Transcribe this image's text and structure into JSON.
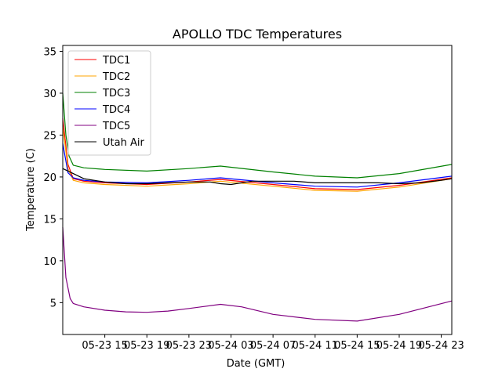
{
  "chart_data": {
    "type": "line",
    "title": "APOLLO TDC Temperatures",
    "xlabel": "Date (GMT)",
    "ylabel": "Temperature (C)",
    "x_unit": "hours since 05-23 11:00 GMT",
    "xlim": [
      0,
      37
    ],
    "ylim": [
      1.2,
      35.7
    ],
    "xticks": [
      {
        "value": 4,
        "label": "05-23 15"
      },
      {
        "value": 8,
        "label": "05-23 19"
      },
      {
        "value": 12,
        "label": "05-23 23"
      },
      {
        "value": 16,
        "label": "05-24 03"
      },
      {
        "value": 20,
        "label": "05-24 07"
      },
      {
        "value": 24,
        "label": "05-24 11"
      },
      {
        "value": 28,
        "label": "05-24 15"
      },
      {
        "value": 32,
        "label": "05-24 19"
      },
      {
        "value": 36,
        "label": "05-24 23"
      }
    ],
    "yticks": [
      5,
      10,
      15,
      20,
      25,
      30,
      35
    ],
    "legend_position": "top-left",
    "series": [
      {
        "name": "TDC1",
        "color": "#ff0000",
        "x": [
          0,
          0.5,
          1,
          2,
          4,
          8,
          12,
          15,
          20,
          24,
          28,
          32,
          37
        ],
        "y": [
          27,
          21.5,
          19.8,
          19.5,
          19.3,
          19.1,
          19.4,
          19.7,
          19.1,
          18.6,
          18.5,
          19.0,
          19.9
        ]
      },
      {
        "name": "TDC2",
        "color": "#ffa500",
        "x": [
          0,
          0.5,
          1,
          2,
          4,
          8,
          12,
          15,
          20,
          24,
          28,
          32,
          37
        ],
        "y": [
          26,
          21,
          19.6,
          19.3,
          19.1,
          18.9,
          19.2,
          19.5,
          18.9,
          18.4,
          18.3,
          18.8,
          19.8
        ]
      },
      {
        "name": "TDC3",
        "color": "#008000",
        "x": [
          0,
          0.3,
          0.6,
          1,
          2,
          4,
          8,
          12,
          15,
          20,
          24,
          28,
          32,
          37
        ],
        "y": [
          30,
          25,
          22.5,
          21.4,
          21.1,
          20.9,
          20.7,
          21.0,
          21.3,
          20.6,
          20.1,
          19.9,
          20.4,
          21.5
        ]
      },
      {
        "name": "TDC4",
        "color": "#0000ff",
        "x": [
          0,
          0.5,
          1,
          2,
          4,
          8,
          12,
          15,
          20,
          24,
          28,
          32,
          37
        ],
        "y": [
          24,
          20.5,
          19.9,
          19.6,
          19.4,
          19.3,
          19.6,
          19.9,
          19.3,
          18.9,
          18.8,
          19.3,
          20.1
        ]
      },
      {
        "name": "TDC5",
        "color": "#800080",
        "x": [
          0,
          0.3,
          0.7,
          1,
          2,
          4,
          6,
          8,
          10,
          12,
          15,
          17,
          20,
          24,
          28,
          32,
          37
        ],
        "y": [
          14,
          8,
          5.5,
          4.9,
          4.5,
          4.1,
          3.9,
          3.85,
          4.0,
          4.3,
          4.8,
          4.5,
          3.6,
          3.0,
          2.8,
          3.6,
          5.2
        ]
      },
      {
        "name": "Utah Air",
        "color": "#000000",
        "x": [
          0,
          1,
          2,
          4,
          6,
          8,
          10,
          12,
          14,
          15,
          16,
          18,
          20,
          22,
          24,
          26,
          28,
          30,
          32,
          34,
          36,
          37
        ],
        "y": [
          21.0,
          20.4,
          19.8,
          19.4,
          19.2,
          19.2,
          19.3,
          19.4,
          19.4,
          19.2,
          19.1,
          19.5,
          19.5,
          19.5,
          19.3,
          19.3,
          19.3,
          19.3,
          19.2,
          19.3,
          19.6,
          19.8
        ]
      }
    ]
  }
}
